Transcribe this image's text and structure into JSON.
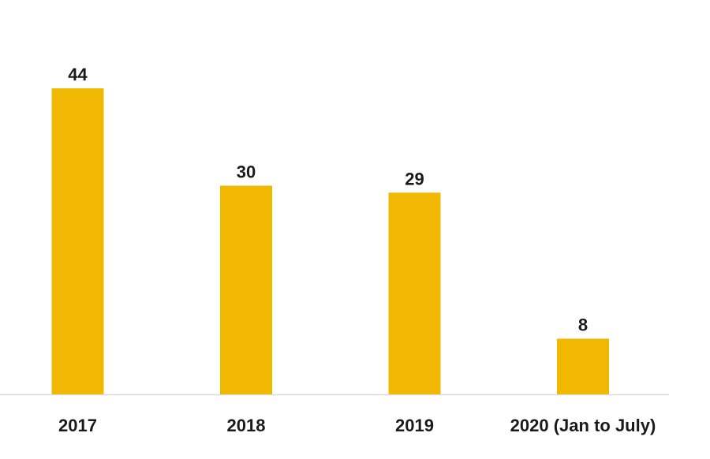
{
  "chart_data": {
    "type": "bar",
    "categories": [
      "2017",
      "2018",
      "2019",
      "2020 (Jan to July)"
    ],
    "values": [
      44,
      30,
      29,
      8
    ],
    "value_labels": [
      "44",
      "30",
      "29",
      "8"
    ],
    "title": "",
    "xlabel": "",
    "ylabel": "",
    "ylim": [
      0,
      44
    ],
    "grid": false,
    "legend": "none",
    "bar_color": "#F0B800",
    "axis_color": "#D9D9D9"
  }
}
